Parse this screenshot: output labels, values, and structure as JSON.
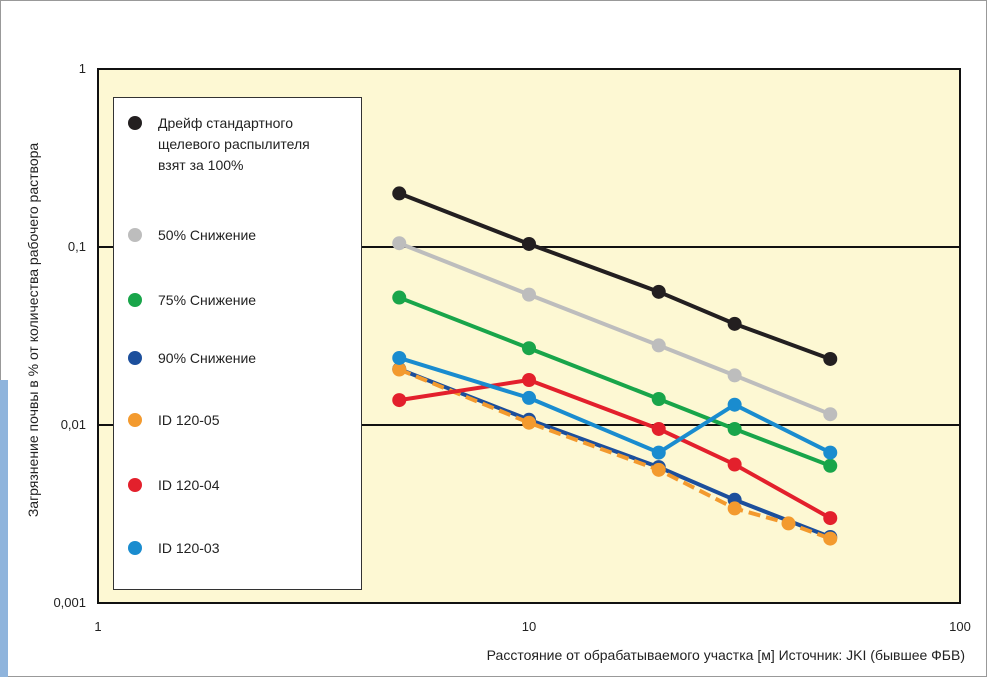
{
  "chart_data": {
    "type": "line",
    "xlabel": "Расстояние от обрабатываемого участка [м] Источник: JKI (бывшее ФБВ)",
    "ylabel": "Загрязнение почвы в % от количества рабочего раствора",
    "xscale": "log",
    "yscale": "log",
    "xlim": [
      1,
      100
    ],
    "ylim": [
      0.001,
      1
    ],
    "xticks": [
      1,
      10,
      100
    ],
    "yticks": [
      {
        "value": 0.001,
        "label": "0,001"
      },
      {
        "value": 0.01,
        "label": "0,01"
      },
      {
        "value": 0.1,
        "label": "0,1"
      },
      1
    ],
    "grid": true,
    "legend": "upper left",
    "series": [
      {
        "name": "Дрейф стандартного щелевого распылителя взят за 100%",
        "color": "#231f20",
        "x": [
          5,
          10,
          20,
          30,
          50
        ],
        "values": [
          0.2,
          0.104,
          0.056,
          0.037,
          0.0235
        ]
      },
      {
        "name": "50% Снижение",
        "color": "#bdbdbd",
        "x": [
          5,
          10,
          20,
          30,
          50
        ],
        "values": [
          0.105,
          0.054,
          0.028,
          0.019,
          0.0115
        ]
      },
      {
        "name": "75% Снижение",
        "color": "#19a54a",
        "x": [
          5,
          10,
          20,
          30,
          50
        ],
        "values": [
          0.052,
          0.027,
          0.014,
          0.0095,
          0.0059
        ]
      },
      {
        "name": "90% Снижение",
        "color": "#1c4f9c",
        "x": [
          5,
          10,
          20,
          30,
          50
        ],
        "values": [
          0.0206,
          0.0107,
          0.0058,
          0.0038,
          0.00235
        ]
      },
      {
        "name": "ID 120-05",
        "color": "#f39a2e",
        "line_style": "dashed",
        "x": [
          5,
          10,
          20,
          30,
          40,
          50
        ],
        "values": [
          0.0205,
          0.0103,
          0.0056,
          0.0034,
          0.0028,
          0.0023
        ]
      },
      {
        "name": "ID 120-04",
        "color": "#e3202c",
        "x": [
          5,
          10,
          20,
          30,
          50
        ],
        "values": [
          0.0138,
          0.0179,
          0.0095,
          0.006,
          0.003
        ]
      },
      {
        "name": "ID 120-03",
        "color": "#1a8ccf",
        "x": [
          5,
          10,
          20,
          30,
          50
        ],
        "values": [
          0.0238,
          0.0142,
          0.007,
          0.013,
          0.007
        ]
      }
    ]
  }
}
